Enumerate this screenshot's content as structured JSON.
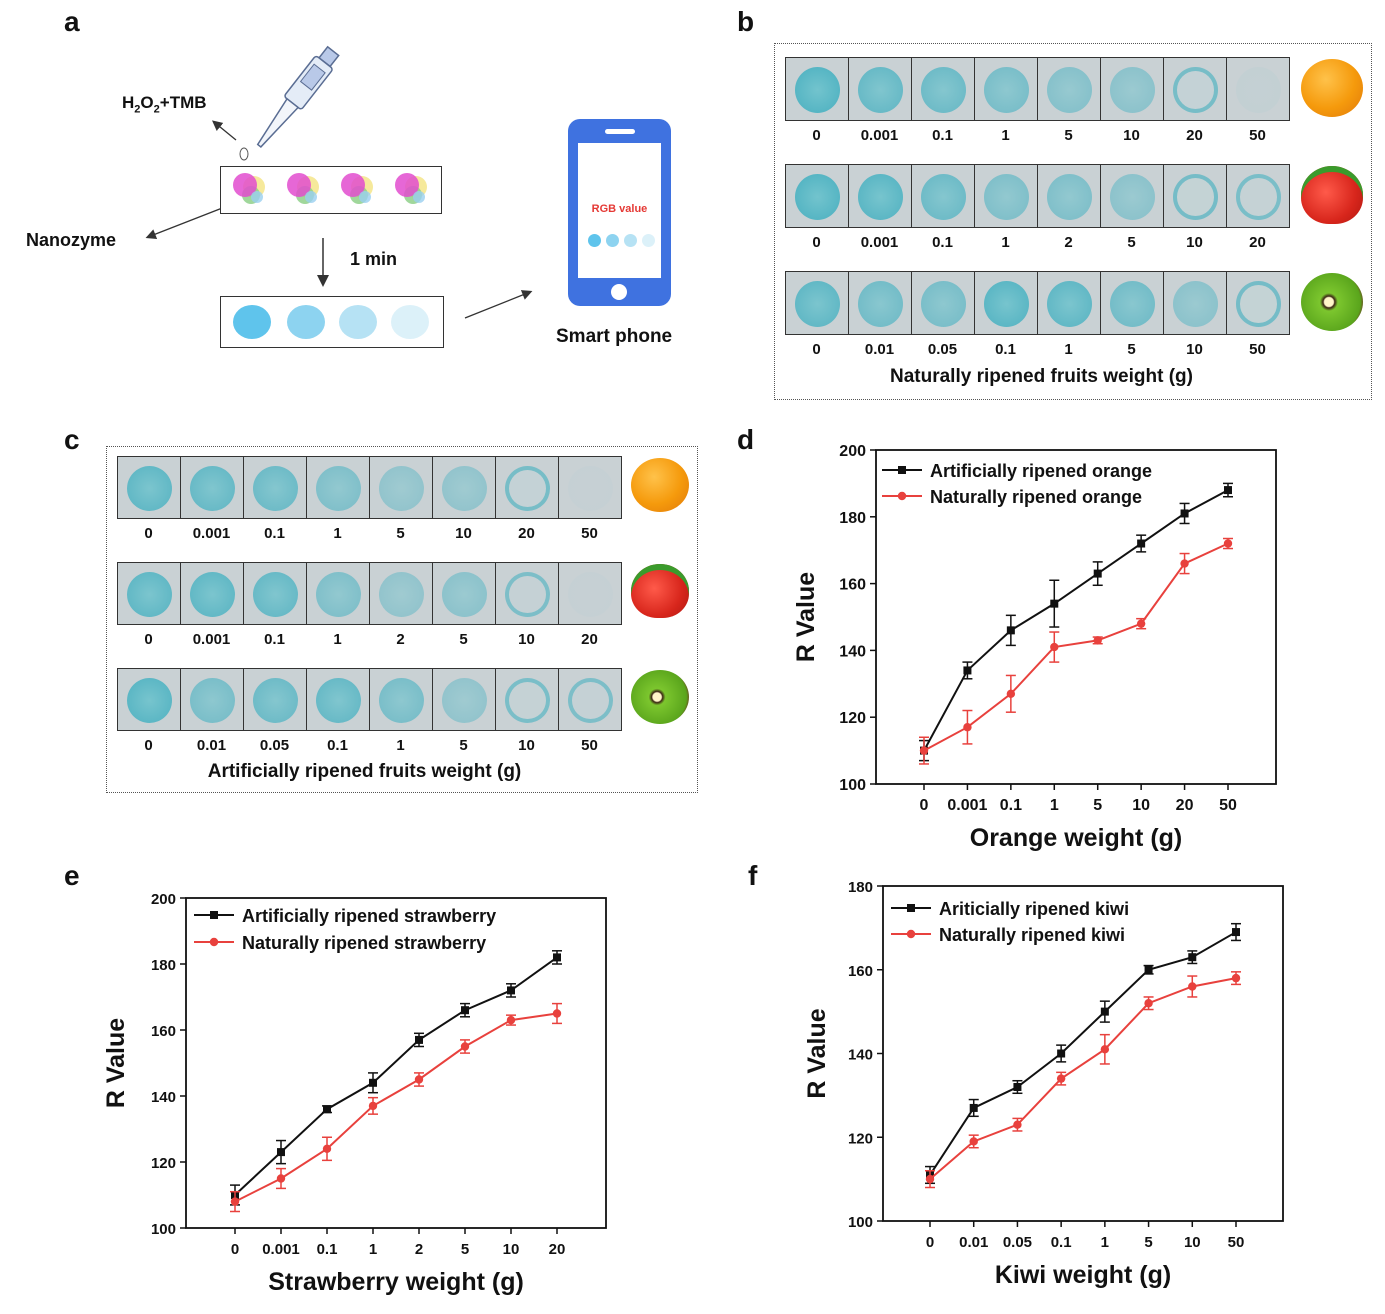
{
  "panel_letters": {
    "a": "a",
    "b": "b",
    "c": "c",
    "d": "d",
    "e": "e",
    "f": "f"
  },
  "schematic": {
    "reagent_label_main": "H",
    "reagent_sub1": "2",
    "reagent_mid": "O",
    "reagent_sub2": "2",
    "reagent_tail": "+TMB",
    "nanozyme_label": "Nanozyme",
    "time_label": "1 min",
    "phone_screen_text": "RGB value",
    "phone_label": "Smart phone",
    "spot_colors": [
      "#5fc4ec",
      "#8dd3f0",
      "#b6e2f4",
      "#dcf1f9"
    ]
  },
  "panel_b": {
    "caption": "Naturally ripened fruits weight (g)",
    "rows": [
      {
        "fruit": "orange-icon",
        "labels": [
          "0",
          "0.001",
          "0.1",
          "1",
          "5",
          "10",
          "20",
          "50"
        ],
        "intensity": [
          0.95,
          0.8,
          0.75,
          0.65,
          0.55,
          0.5,
          0.4,
          0.05
        ],
        "ring": [
          0,
          0,
          0,
          0,
          0,
          0,
          1,
          0
        ]
      },
      {
        "fruit": "strawberry-icon",
        "labels": [
          "0",
          "0.001",
          "0.1",
          "1",
          "2",
          "5",
          "10",
          "20"
        ],
        "intensity": [
          0.95,
          0.9,
          0.75,
          0.6,
          0.6,
          0.5,
          0.45,
          0.35
        ],
        "ring": [
          0,
          0,
          0,
          0,
          0,
          0,
          1,
          1
        ]
      },
      {
        "fruit": "kiwi-icon",
        "labels": [
          "0",
          "0.01",
          "0.05",
          "0.1",
          "1",
          "5",
          "10",
          "50"
        ],
        "intensity": [
          0.85,
          0.7,
          0.65,
          0.9,
          0.85,
          0.7,
          0.5,
          0.45
        ],
        "ring": [
          0,
          0,
          0,
          0,
          0,
          0,
          0,
          1
        ]
      }
    ]
  },
  "panel_c": {
    "caption": "Artificially ripened fruits weight (g)",
    "rows": [
      {
        "fruit": "orange-icon",
        "labels": [
          "0",
          "0.001",
          "0.1",
          "1",
          "5",
          "10",
          "20",
          "50"
        ],
        "intensity": [
          0.85,
          0.8,
          0.75,
          0.6,
          0.45,
          0.45,
          0.4,
          0.0
        ],
        "ring": [
          0,
          0,
          0,
          0,
          0,
          0,
          1,
          0
        ]
      },
      {
        "fruit": "strawberry-icon",
        "labels": [
          "0",
          "0.001",
          "0.1",
          "1",
          "2",
          "5",
          "10",
          "20"
        ],
        "intensity": [
          0.85,
          0.85,
          0.8,
          0.6,
          0.45,
          0.5,
          0.3,
          0.0
        ],
        "ring": [
          0,
          0,
          0,
          0,
          0,
          0,
          1,
          0
        ]
      },
      {
        "fruit": "kiwi-icon",
        "labels": [
          "0",
          "0.01",
          "0.05",
          "0.1",
          "1",
          "5",
          "10",
          "50"
        ],
        "intensity": [
          0.9,
          0.65,
          0.75,
          0.8,
          0.65,
          0.45,
          0.35,
          0.3
        ],
        "ring": [
          0,
          0,
          0,
          0,
          0,
          0,
          1,
          1
        ]
      }
    ]
  },
  "chart_data": [
    {
      "type": "line",
      "panel": "d",
      "categories": [
        "0",
        "0.001",
        "0.1",
        "1",
        "5",
        "10",
        "20",
        "50"
      ],
      "series": [
        {
          "name": "Artificially ripened orange",
          "color": "#111111",
          "values": [
            110,
            134,
            146,
            154,
            163,
            172,
            181,
            188
          ],
          "errors": [
            3,
            2.5,
            4.5,
            7,
            3.5,
            2.5,
            3,
            2
          ]
        },
        {
          "name": "Naturally ripened orange",
          "color": "#e8413d",
          "values": [
            110,
            117,
            127,
            141,
            143,
            148,
            166,
            172
          ],
          "errors": [
            4,
            5,
            5.5,
            4.5,
            1,
            1.5,
            3,
            1.5
          ]
        }
      ],
      "xlabel": "Orange weight (g)",
      "ylabel": "R Value",
      "ylim": [
        100,
        200
      ],
      "yticks": [
        100,
        120,
        140,
        160,
        180,
        200
      ],
      "legend": "top-left",
      "grid": false
    },
    {
      "type": "line",
      "panel": "e",
      "categories": [
        "0",
        "0.001",
        "0.1",
        "1",
        "2",
        "5",
        "10",
        "20"
      ],
      "series": [
        {
          "name": "Artificially ripened strawberry",
          "color": "#111111",
          "values": [
            110,
            123,
            136,
            144,
            157,
            166,
            172,
            182
          ],
          "errors": [
            3,
            3.5,
            1,
            3,
            2,
            2,
            2,
            2
          ]
        },
        {
          "name": "Naturally ripened strawberry",
          "color": "#e8413d",
          "values": [
            108,
            115,
            124,
            137,
            145,
            155,
            163,
            165
          ],
          "errors": [
            3,
            3,
            3.5,
            2.5,
            2,
            2,
            1.5,
            3
          ]
        }
      ],
      "xlabel": "Strawberry weight (g)",
      "ylabel": "R Value",
      "ylim": [
        100,
        200
      ],
      "yticks": [
        100,
        120,
        140,
        160,
        180,
        200
      ],
      "legend": "top-left",
      "grid": false
    },
    {
      "type": "line",
      "panel": "f",
      "categories": [
        "0",
        "0.01",
        "0.05",
        "0.1",
        "1",
        "5",
        "10",
        "50"
      ],
      "series": [
        {
          "name": "Ariticially ripened kiwi",
          "color": "#111111",
          "values": [
            111,
            127,
            132,
            140,
            150,
            160,
            163,
            169
          ],
          "errors": [
            2,
            2,
            1.5,
            2,
            2.5,
            1,
            1.5,
            2
          ]
        },
        {
          "name": "Naturally ripened kiwi",
          "color": "#e8413d",
          "values": [
            110,
            119,
            123,
            134,
            141,
            152,
            156,
            158
          ],
          "errors": [
            2,
            1.5,
            1.5,
            1.5,
            3.5,
            1.5,
            2.5,
            1.5
          ]
        }
      ],
      "xlabel": "Kiwi weight (g)",
      "ylabel": "R Value",
      "ylim": [
        100,
        180
      ],
      "yticks": [
        100,
        120,
        140,
        160,
        180
      ],
      "legend": "top-left",
      "grid": false
    }
  ]
}
